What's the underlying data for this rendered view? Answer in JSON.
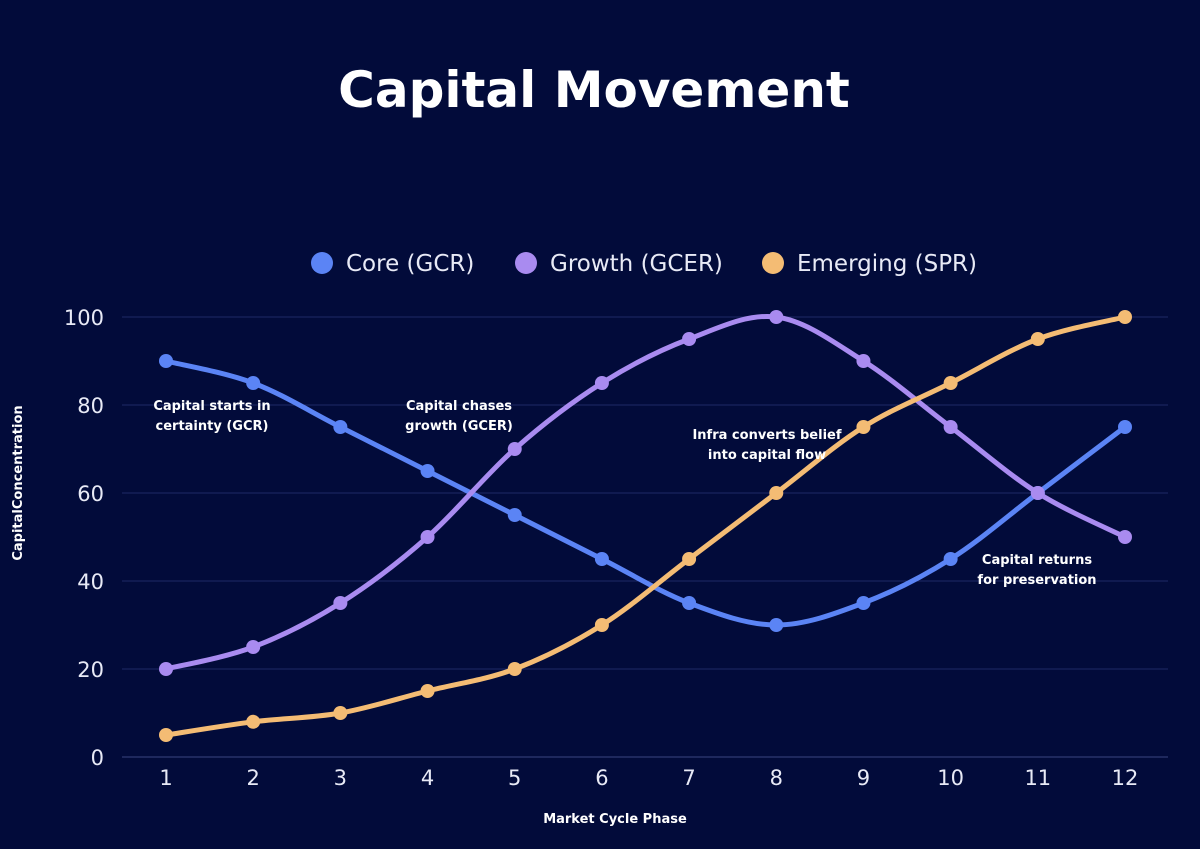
{
  "chart_data": {
    "type": "line",
    "title": "Capital Movement",
    "xlabel": "Market Cycle Phase",
    "ylabel": "CapitalConcentration",
    "x": [
      1,
      2,
      3,
      4,
      5,
      6,
      7,
      8,
      9,
      10,
      11,
      12
    ],
    "xticks": [
      "1",
      "2",
      "3",
      "4",
      "5",
      "6",
      "7",
      "8",
      "9",
      "10",
      "11",
      "12"
    ],
    "yticks": [
      "0",
      "20",
      "40",
      "60",
      "80",
      "100"
    ],
    "ylim": [
      0,
      100
    ],
    "grid": "horizontal",
    "legend_position": "top",
    "background": "#020b3a",
    "series": [
      {
        "name": "Core (GCR)",
        "color": "#5b84f5",
        "values": [
          90,
          85,
          75,
          65,
          55,
          45,
          35,
          30,
          35,
          45,
          60,
          75
        ]
      },
      {
        "name": "Growth (GCER)",
        "color": "#a98bf0",
        "values": [
          20,
          25,
          35,
          50,
          70,
          85,
          95,
          100,
          90,
          75,
          60,
          50
        ]
      },
      {
        "name": "Emerging (SPR)",
        "color": "#f4bc74",
        "values": [
          5,
          8,
          10,
          15,
          20,
          30,
          45,
          60,
          75,
          85,
          95,
          100
        ]
      }
    ],
    "annotations": [
      {
        "lines": [
          "Capital starts in",
          "certainty (GCR)"
        ]
      },
      {
        "lines": [
          "Capital chases",
          "growth (GCER)"
        ]
      },
      {
        "lines": [
          "Infra converts belief",
          "into capital flow"
        ]
      },
      {
        "lines": [
          "Capital returns",
          "for preservation"
        ]
      }
    ]
  }
}
